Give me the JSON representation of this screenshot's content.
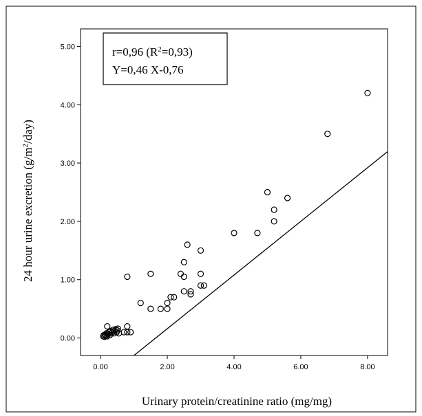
{
  "chart_data": {
    "type": "scatter",
    "xlabel": "Urinary protein/creatinine ratio (mg/mg)",
    "ylabel_main": "24 hour urine excretion (g/m",
    "ylabel_sup": "2",
    "ylabel_tail": "/day)",
    "xlim": [
      -0.6,
      8.6
    ],
    "ylim": [
      -0.3,
      5.3
    ],
    "x_ticks": [
      0,
      2,
      4,
      6,
      8
    ],
    "x_tick_labels": [
      "0.00",
      "2.00",
      "4.00",
      "6.00",
      "8.00"
    ],
    "y_ticks": [
      0,
      1,
      2,
      3,
      4,
      5
    ],
    "y_tick_labels": [
      "0.00",
      "1.00",
      "2.00",
      "3.00",
      "4.00",
      "5.00"
    ],
    "annotation": {
      "line1_prefix": "r=0,96 (R",
      "line1_sup": "2",
      "line1_suffix": "=0,93)",
      "line2": "Y=0,46 X-0,76"
    },
    "regression": {
      "slope": 0.46,
      "intercept": -0.76
    },
    "points": [
      {
        "x": 0.08,
        "y": 0.03
      },
      {
        "x": 0.1,
        "y": 0.05
      },
      {
        "x": 0.12,
        "y": 0.02
      },
      {
        "x": 0.14,
        "y": 0.06
      },
      {
        "x": 0.16,
        "y": 0.04
      },
      {
        "x": 0.18,
        "y": 0.08
      },
      {
        "x": 0.2,
        "y": 0.03
      },
      {
        "x": 0.22,
        "y": 0.07
      },
      {
        "x": 0.25,
        "y": 0.1
      },
      {
        "x": 0.28,
        "y": 0.05
      },
      {
        "x": 0.3,
        "y": 0.12
      },
      {
        "x": 0.32,
        "y": 0.08
      },
      {
        "x": 0.35,
        "y": 0.1
      },
      {
        "x": 0.38,
        "y": 0.14
      },
      {
        "x": 0.4,
        "y": 0.08
      },
      {
        "x": 0.42,
        "y": 0.12
      },
      {
        "x": 0.45,
        "y": 0.15
      },
      {
        "x": 0.48,
        "y": 0.1
      },
      {
        "x": 0.5,
        "y": 0.13
      },
      {
        "x": 0.52,
        "y": 0.16
      },
      {
        "x": 0.2,
        "y": 0.2
      },
      {
        "x": 0.55,
        "y": 0.08
      },
      {
        "x": 0.7,
        "y": 0.1
      },
      {
        "x": 0.8,
        "y": 0.1
      },
      {
        "x": 0.8,
        "y": 0.2
      },
      {
        "x": 0.9,
        "y": 0.1
      },
      {
        "x": 0.8,
        "y": 1.05
      },
      {
        "x": 1.2,
        "y": 0.6
      },
      {
        "x": 1.5,
        "y": 0.5
      },
      {
        "x": 1.5,
        "y": 1.1
      },
      {
        "x": 1.8,
        "y": 0.5
      },
      {
        "x": 2.0,
        "y": 0.5
      },
      {
        "x": 2.0,
        "y": 0.6
      },
      {
        "x": 2.1,
        "y": 0.7
      },
      {
        "x": 2.2,
        "y": 0.7
      },
      {
        "x": 2.4,
        "y": 1.1
      },
      {
        "x": 2.5,
        "y": 1.05
      },
      {
        "x": 2.5,
        "y": 0.8
      },
      {
        "x": 2.5,
        "y": 1.3
      },
      {
        "x": 2.6,
        "y": 1.6
      },
      {
        "x": 2.7,
        "y": 0.75
      },
      {
        "x": 2.7,
        "y": 0.8
      },
      {
        "x": 3.0,
        "y": 1.5
      },
      {
        "x": 3.0,
        "y": 1.1
      },
      {
        "x": 3.0,
        "y": 0.9
      },
      {
        "x": 3.1,
        "y": 0.9
      },
      {
        "x": 4.0,
        "y": 1.8
      },
      {
        "x": 4.7,
        "y": 1.8
      },
      {
        "x": 5.0,
        "y": 2.5
      },
      {
        "x": 5.2,
        "y": 2.2
      },
      {
        "x": 5.2,
        "y": 2.0
      },
      {
        "x": 5.6,
        "y": 2.4
      },
      {
        "x": 6.8,
        "y": 3.5
      },
      {
        "x": 8.0,
        "y": 4.2
      }
    ]
  }
}
